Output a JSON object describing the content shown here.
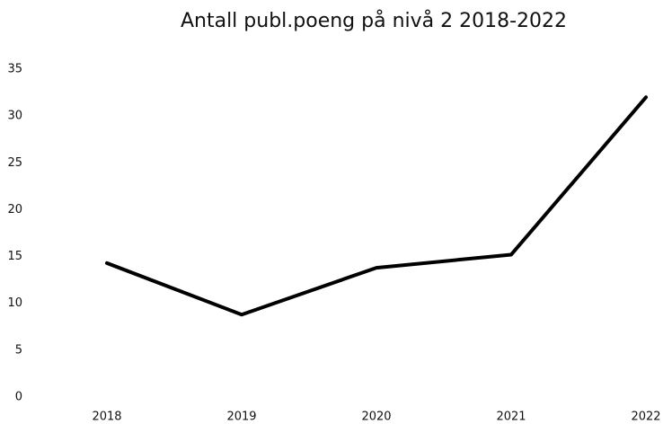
{
  "chart_data": {
    "type": "line",
    "title": "Antall publ.poeng på nivå 2 2018-2022",
    "categories": [
      "2018",
      "2019",
      "2020",
      "2021",
      "2022"
    ],
    "values": [
      14.3,
      8.8,
      13.8,
      15.2,
      32.0
    ],
    "color": "#000000",
    "ylim": [
      0,
      35
    ],
    "yticks": [
      0,
      5,
      10,
      15,
      20,
      25,
      30,
      35
    ],
    "grid": false
  }
}
